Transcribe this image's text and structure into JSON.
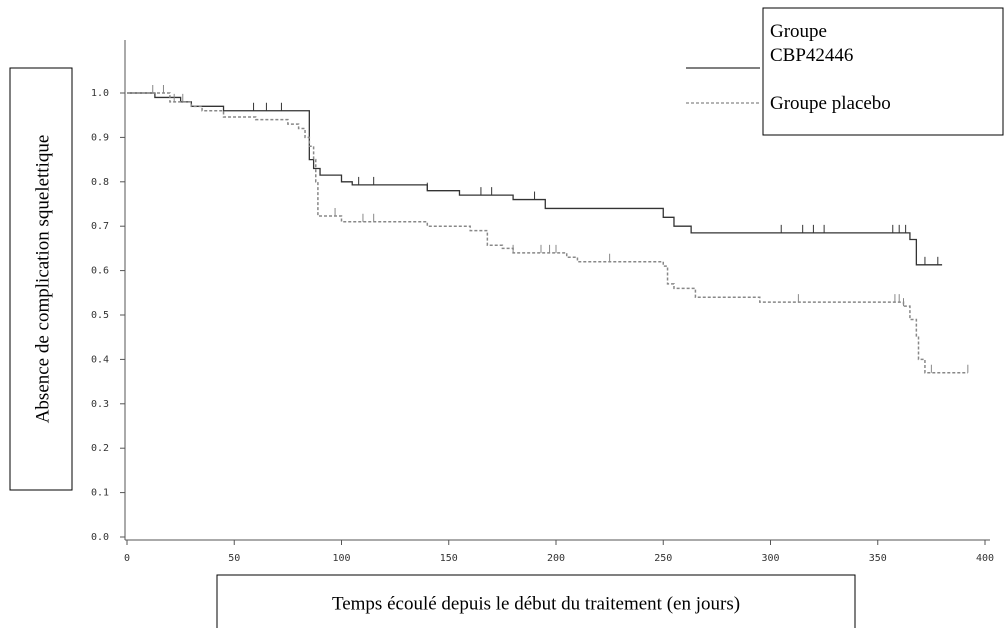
{
  "chart_data": {
    "type": "step",
    "x_label": "Temps écoulé depuis le début du traitement (en jours)",
    "y_label": "Absence de complication squelettique",
    "xlim": [
      0,
      400
    ],
    "xticks": [
      0,
      50,
      100,
      150,
      200,
      250,
      300,
      350,
      400
    ],
    "ylim": [
      0,
      1.1
    ],
    "yticks": [
      {
        "value": 0,
        "label": "0.0"
      },
      0.1,
      0.2,
      0.3,
      0.4,
      0.5,
      0.6,
      0.7,
      0.8,
      0.9,
      {
        "value": 1,
        "label": "1.0"
      }
    ],
    "series": [
      {
        "name": "Groupe CBP42446",
        "color": "#333333",
        "style": "solid",
        "x": [
          0,
          13,
          25,
          30,
          45,
          85,
          87,
          90,
          100,
          105,
          140,
          155,
          180,
          195,
          250,
          255,
          263,
          365,
          368,
          380
        ],
        "values": [
          1.0,
          0.99,
          0.98,
          0.97,
          0.96,
          0.85,
          0.83,
          0.815,
          0.8,
          0.793,
          0.78,
          0.77,
          0.76,
          0.74,
          0.72,
          0.7,
          0.685,
          0.67,
          0.613,
          0.613
        ],
        "censored": [
          59,
          65,
          72,
          108,
          115,
          140,
          165,
          170,
          190,
          305,
          315,
          320,
          325,
          357,
          360,
          363,
          372,
          378
        ]
      },
      {
        "name": "Groupe placebo",
        "color": "#888888",
        "style": "dashed",
        "x": [
          0,
          20,
          30,
          35,
          45,
          60,
          75,
          80,
          83,
          85,
          87,
          88,
          89,
          100,
          140,
          160,
          168,
          175,
          180,
          205,
          210,
          250,
          252,
          255,
          265,
          295,
          362,
          365,
          368,
          369,
          372,
          392
        ],
        "values": [
          1.0,
          0.98,
          0.97,
          0.96,
          0.946,
          0.94,
          0.93,
          0.92,
          0.9,
          0.88,
          0.85,
          0.8,
          0.723,
          0.71,
          0.7,
          0.69,
          0.657,
          0.65,
          0.64,
          0.63,
          0.62,
          0.61,
          0.57,
          0.56,
          0.54,
          0.529,
          0.52,
          0.49,
          0.45,
          0.4,
          0.37,
          0.37
        ],
        "censored": [
          12,
          17,
          22,
          26,
          97,
          110,
          115,
          180,
          193,
          197,
          200,
          225,
          313,
          358,
          360,
          362,
          375,
          392
        ]
      }
    ]
  }
}
